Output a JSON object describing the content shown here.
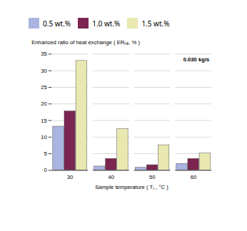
{
  "chart_data": {
    "type": "bar",
    "categories": [
      "30",
      "40",
      "50",
      "60"
    ],
    "series": [
      {
        "name": "0.5 wt.%",
        "color": "#aab4e0",
        "values": [
          13.2,
          1.2,
          0.8,
          2.0
        ]
      },
      {
        "name": "1.0 wt.%",
        "color": "#7b2550",
        "values": [
          17.8,
          3.5,
          1.6,
          3.5
        ]
      },
      {
        "name": "1.5 wt.%",
        "color": "#e8e8b0",
        "values": [
          33.0,
          12.5,
          7.6,
          5.1
        ]
      }
    ],
    "xlabel": "Sample temperature ( Tₛ , °C )",
    "ylabel": "Enhanced ratio of heat exchange ( ERₕₑ, % )",
    "annotation": "0.030 kg/s",
    "ylim": [
      0,
      35
    ],
    "yticks": [
      0,
      5,
      10,
      15,
      20,
      25,
      30,
      35
    ],
    "grid": true,
    "legend": "top"
  }
}
